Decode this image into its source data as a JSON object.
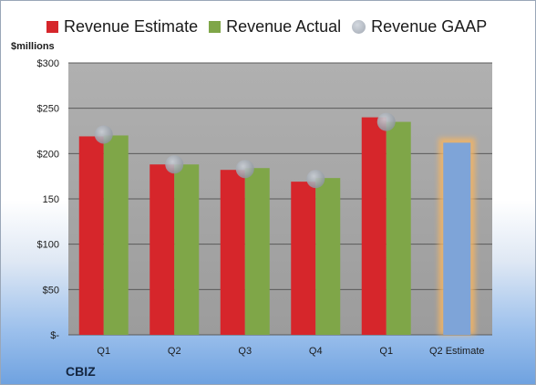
{
  "company": "CBIZ",
  "unit_label": "$millions",
  "legend": [
    {
      "label": "Revenue Estimate",
      "color": "#d6262b",
      "kind": "square"
    },
    {
      "label": "Revenue Actual",
      "color": "#7fa648",
      "kind": "square"
    },
    {
      "label": "Revenue GAAP",
      "color": "#b5bbc3",
      "kind": "dot"
    }
  ],
  "chart_data": {
    "type": "bar",
    "categories": [
      "Q1",
      "Q2",
      "Q3",
      "Q4",
      "Q1",
      "Q2 Estimate"
    ],
    "series": [
      {
        "name": "Revenue Estimate",
        "values": [
          219,
          188,
          182,
          169,
          240,
          null
        ],
        "color": "#d6262b"
      },
      {
        "name": "Revenue Actual",
        "values": [
          220,
          188,
          184,
          173,
          235,
          null
        ],
        "color": "#7fa648"
      },
      {
        "name": "Revenue GAAP",
        "values": [
          221,
          188,
          183,
          172,
          235,
          null
        ],
        "color": "#b5bbc3"
      }
    ],
    "estimate_bar": {
      "category": "Q2 Estimate",
      "value": 212,
      "color": "#7ea4d8",
      "glow": "#f3b463"
    },
    "yticks": [
      {
        "value": 0,
        "label": "$-"
      },
      {
        "value": 50,
        "label": "$50"
      },
      {
        "value": 100,
        "label": "$100"
      },
      {
        "value": 150,
        "label": "150"
      },
      {
        "value": 200,
        "label": "$200"
      },
      {
        "value": 250,
        "label": "$250"
      },
      {
        "value": 300,
        "label": "$300"
      }
    ],
    "ylim": [
      0,
      300
    ],
    "grid": true,
    "legend_position": "top",
    "plot_background": "#a8a8a8"
  }
}
